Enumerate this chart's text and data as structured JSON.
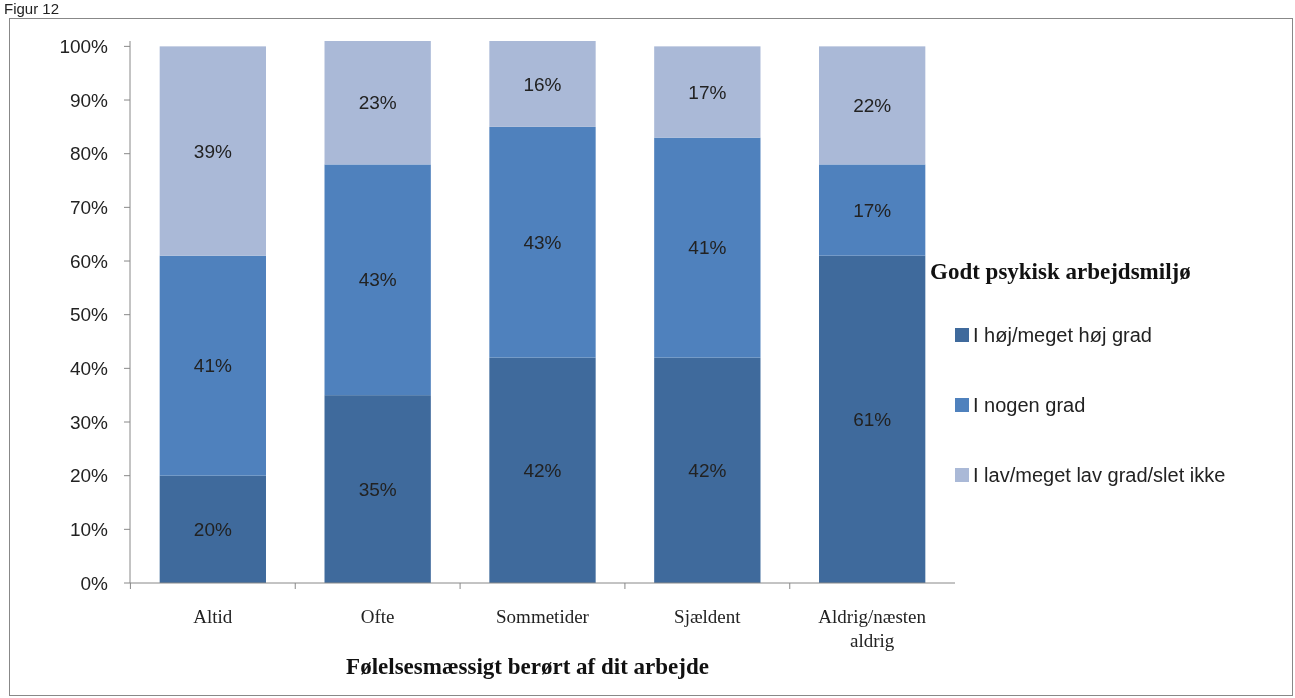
{
  "chart_data": {
    "type": "bar",
    "stacked": true,
    "title": "Figur 12",
    "xlabel": "Følelsesmæssigt berørt af dit arbejde",
    "legend_title": "Godt psykisk arbejdsmiljø",
    "legend": "right",
    "categories": [
      "Altid",
      "Ofte",
      "Sommetider",
      "Sjældent",
      "Aldrig/næsten aldrig"
    ],
    "series": [
      {
        "name": "I høj/meget høj grad",
        "color": "#3f6a9c",
        "values": [
          20,
          35,
          42,
          42,
          61
        ],
        "value_labels": [
          "20%",
          "35%",
          "42%",
          "42%",
          "61%"
        ]
      },
      {
        "name": "I nogen grad",
        "color": "#4f81bd",
        "values": [
          41,
          43,
          43,
          41,
          17
        ],
        "value_labels": [
          "41%",
          "43%",
          "43%",
          "41%",
          "17%"
        ]
      },
      {
        "name": "I lav/meget lav grad/slet ikke",
        "color": "#aab9d7",
        "values": [
          39,
          23,
          16,
          17,
          22
        ],
        "value_labels": [
          "39%",
          "23%",
          "16%",
          "17%",
          "22%"
        ]
      }
    ],
    "ylim": [
      0,
      101
    ],
    "yticks": [
      {
        "value": 0,
        "label": "0%"
      },
      {
        "value": 10,
        "label": "10%"
      },
      {
        "value": 20,
        "label": "20%"
      },
      {
        "value": 30,
        "label": "30%"
      },
      {
        "value": 40,
        "label": "40%"
      },
      {
        "value": 50,
        "label": "50%"
      },
      {
        "value": 60,
        "label": "60%"
      },
      {
        "value": 70,
        "label": "70%"
      },
      {
        "value": 80,
        "label": "80%"
      },
      {
        "value": 90,
        "label": "90%"
      },
      {
        "value": 100,
        "label": "100%"
      }
    ],
    "grid": false
  }
}
